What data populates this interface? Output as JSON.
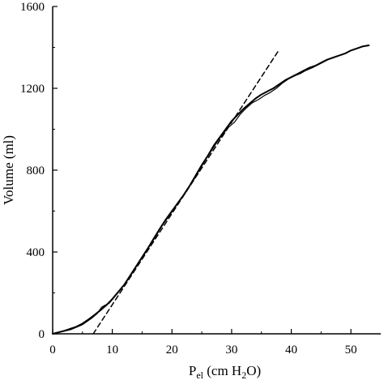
{
  "chart_data": {
    "type": "line",
    "title": "",
    "xlabel": {
      "main": "P",
      "subscript": "el",
      "rest_before_sub": " (cm H",
      "h2o_sub": "2",
      "rest_after_sub": "O)"
    },
    "ylabel": "Volume (ml)",
    "xlim": [
      0,
      55
    ],
    "ylim": [
      0,
      1600
    ],
    "xticks": [
      0,
      10,
      20,
      30,
      40,
      50
    ],
    "yticks": [
      0,
      400,
      800,
      1200,
      1600
    ],
    "grid": false,
    "legend": "none",
    "series": [
      {
        "style": "solid",
        "color": "#000000",
        "x": [
          0,
          2,
          4,
          5,
          6,
          7,
          8,
          9,
          10,
          11,
          12,
          13,
          14,
          15,
          16,
          17,
          18,
          19,
          20,
          21,
          22,
          23,
          24,
          25,
          26,
          27,
          28,
          29,
          30,
          31,
          32,
          33,
          34,
          35,
          36,
          37,
          38,
          39,
          40,
          41,
          42,
          43,
          44,
          45,
          46,
          47,
          48,
          49,
          50,
          51,
          52,
          53
        ],
        "y": [
          0,
          15,
          35,
          50,
          70,
          92,
          115,
          140,
          170,
          205,
          240,
          285,
          330,
          375,
          420,
          468,
          515,
          560,
          600,
          640,
          680,
          725,
          775,
          825,
          870,
          920,
          960,
          1000,
          1040,
          1070,
          1100,
          1125,
          1150,
          1170,
          1185,
          1200,
          1220,
          1240,
          1255,
          1270,
          1285,
          1300,
          1310,
          1325,
          1340,
          1350,
          1360,
          1370,
          1385,
          1395,
          1405,
          1410
        ]
      },
      {
        "style": "solid-thin",
        "color": "#000000",
        "x": [
          0,
          3,
          5,
          6.5,
          7.5,
          8.2,
          8.8,
          9.5,
          10.5,
          11.5,
          12.5,
          13.5,
          14.5,
          15.5,
          16.5,
          17.5,
          18.5,
          19.5,
          20.5,
          21.5,
          22.5,
          23.5,
          24.5,
          25.5,
          26.5,
          27.5,
          28.5,
          29.5,
          30.5,
          31.5,
          32.5,
          33.5,
          34.5,
          35.5,
          36.5,
          37.5,
          38.5,
          39.5,
          40.5,
          41.5,
          42.5,
          43.5,
          44.5,
          45.5,
          46.5,
          47.5,
          48.5,
          49.5,
          50.5,
          51.5,
          52.5,
          53
        ],
        "y": [
          0,
          20,
          45,
          75,
          100,
          130,
          140,
          150,
          185,
          220,
          260,
          305,
          350,
          395,
          440,
          488,
          535,
          575,
          618,
          660,
          705,
          745,
          795,
          845,
          890,
          935,
          975,
          1010,
          1035,
          1075,
          1105,
          1130,
          1145,
          1165,
          1180,
          1200,
          1225,
          1245,
          1260,
          1272,
          1288,
          1300,
          1315,
          1330,
          1345,
          1355,
          1365,
          1378,
          1390,
          1400,
          1408,
          1412
        ]
      },
      {
        "style": "dashed",
        "color": "#000000",
        "x": [
          6.8,
          38
        ],
        "y": [
          0,
          1390
        ]
      }
    ]
  }
}
